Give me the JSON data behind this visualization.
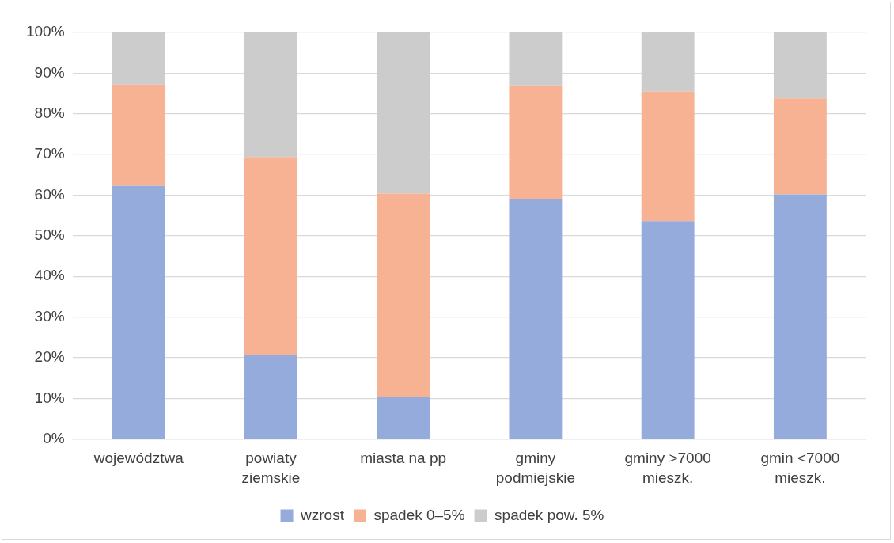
{
  "chart_data": {
    "type": "bar",
    "stacked": true,
    "categories": [
      "województwa",
      "powiaty ziemskie",
      "miasta na pp",
      "gminy podmiejskie",
      "gminy >7000 mieszk.",
      "gmin <7000 mieszk."
    ],
    "series": [
      {
        "name": "wzrost",
        "color": "#94abdb",
        "values": [
          62.3,
          20.6,
          10.4,
          59.1,
          53.6,
          60.2
        ]
      },
      {
        "name": "spadek 0–5%",
        "color": "#f6b293",
        "values": [
          24.9,
          48.8,
          50.0,
          27.7,
          31.9,
          23.6
        ]
      },
      {
        "name": "spadek pow. 5%",
        "color": "#cccccc",
        "values": [
          12.8,
          30.6,
          39.6,
          13.2,
          14.5,
          16.2
        ]
      }
    ],
    "ylim": [
      0,
      100
    ],
    "yticks": [
      {
        "value": 0,
        "label": "0%"
      },
      {
        "value": 10,
        "label": "10%"
      },
      {
        "value": 20,
        "label": "20%"
      },
      {
        "value": 30,
        "label": "30%"
      },
      {
        "value": 40,
        "label": "40%"
      },
      {
        "value": 50,
        "label": "50%"
      },
      {
        "value": 60,
        "label": "60%"
      },
      {
        "value": 70,
        "label": "70%"
      },
      {
        "value": 80,
        "label": "80%"
      },
      {
        "value": 90,
        "label": "90%"
      },
      {
        "value": 100,
        "label": "100%"
      }
    ],
    "grid": "y",
    "legend": "bottom"
  }
}
